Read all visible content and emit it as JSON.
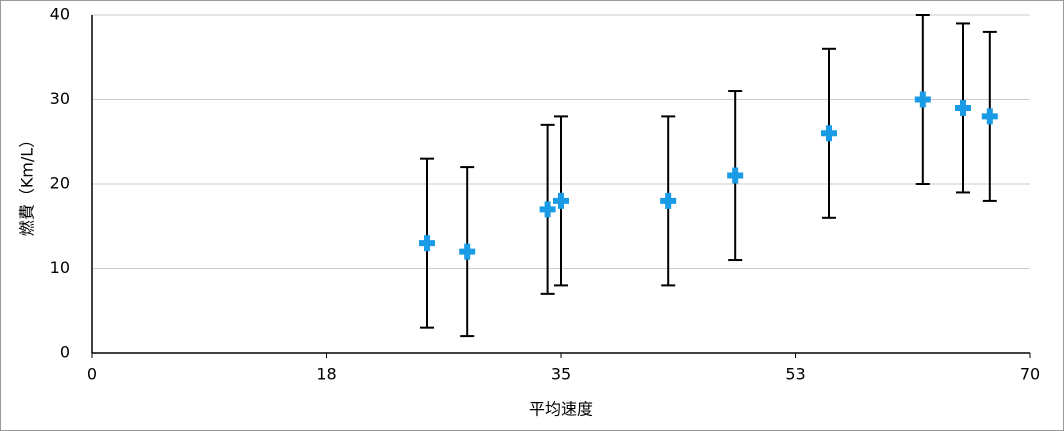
{
  "chart_data": {
    "type": "scatter",
    "x_label": "平均速度",
    "y_label": "燃費（Km/L）",
    "x": [
      25,
      28,
      34,
      35,
      43,
      48,
      55,
      62,
      65,
      67
    ],
    "y": [
      13,
      12,
      17,
      18,
      18,
      21,
      26,
      30,
      29,
      28
    ],
    "errors": [
      10,
      10,
      10,
      10,
      10,
      10,
      10,
      10,
      10,
      10
    ],
    "color": "#1a9be6",
    "xlim": [
      0,
      70
    ],
    "ylim": [
      0,
      40
    ],
    "xticks": [
      0,
      {
        "value": 17.5,
        "label": "18"
      },
      35,
      {
        "value": 52.5,
        "label": "53"
      },
      70
    ],
    "yticks": [
      0,
      10,
      20,
      30,
      40
    ],
    "grid": true
  }
}
